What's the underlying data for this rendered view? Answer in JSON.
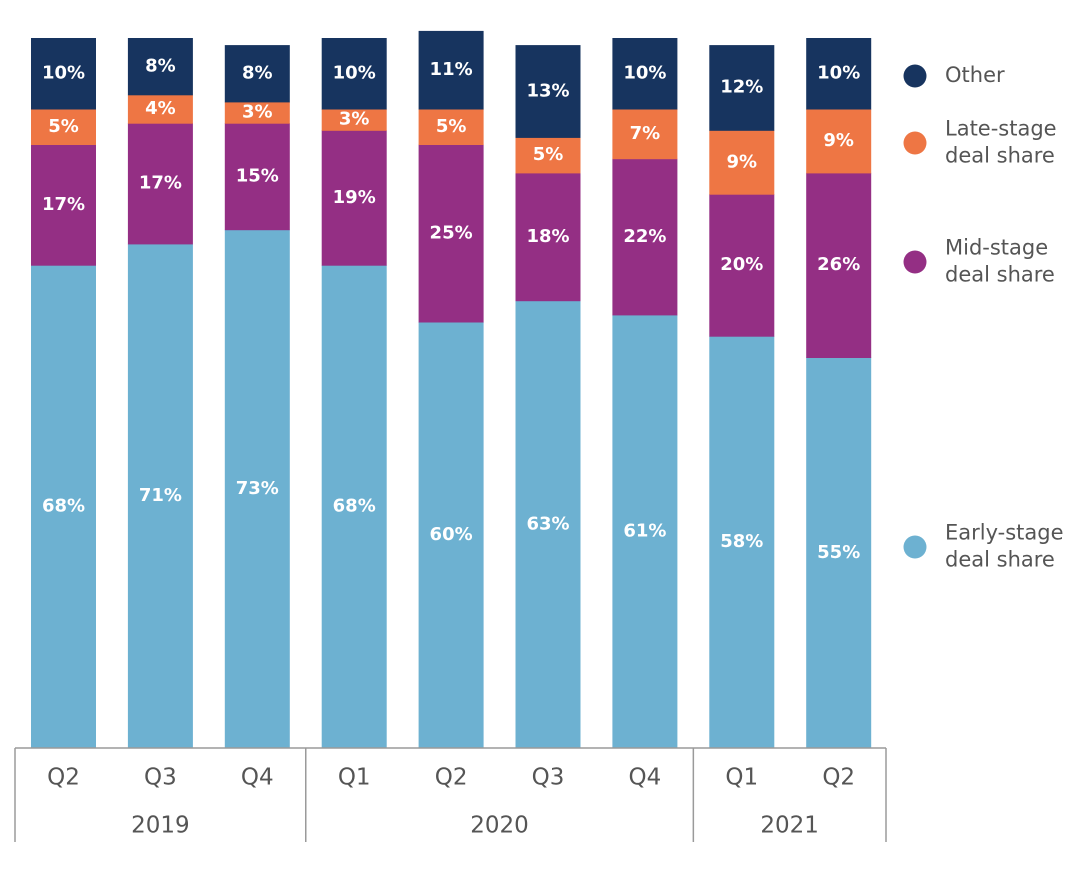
{
  "chart_data": {
    "type": "bar",
    "stacked": true,
    "percent_stacked": true,
    "categories": [
      "Q2",
      "Q3",
      "Q4",
      "Q1",
      "Q2",
      "Q3",
      "Q4",
      "Q1",
      "Q2"
    ],
    "groups": [
      {
        "label": "2019",
        "count": 3
      },
      {
        "label": "2020",
        "count": 4
      },
      {
        "label": "2021",
        "count": 2
      }
    ],
    "series": [
      {
        "name": "Early-stage deal share",
        "color": "#6db1d1",
        "values": [
          68,
          71,
          73,
          68,
          60,
          63,
          61,
          58,
          55
        ]
      },
      {
        "name": "Mid-stage deal share",
        "color": "#942f84",
        "values": [
          17,
          17,
          15,
          19,
          25,
          18,
          22,
          20,
          26
        ]
      },
      {
        "name": "Late-stage deal share",
        "color": "#ee7644",
        "values": [
          5,
          4,
          3,
          3,
          5,
          5,
          7,
          9,
          9
        ]
      },
      {
        "name": "Other",
        "color": "#17345f",
        "values": [
          10,
          8,
          8,
          10,
          11,
          13,
          10,
          12,
          10
        ]
      }
    ],
    "value_suffix": "%",
    "legend_order": [
      "Other",
      "Late-stage deal share",
      "Mid-stage deal share",
      "Early-stage deal share"
    ],
    "legend_position": "right",
    "ylim": [
      0,
      100
    ],
    "grid": false,
    "title": "",
    "xlabel": "",
    "ylabel": ""
  }
}
